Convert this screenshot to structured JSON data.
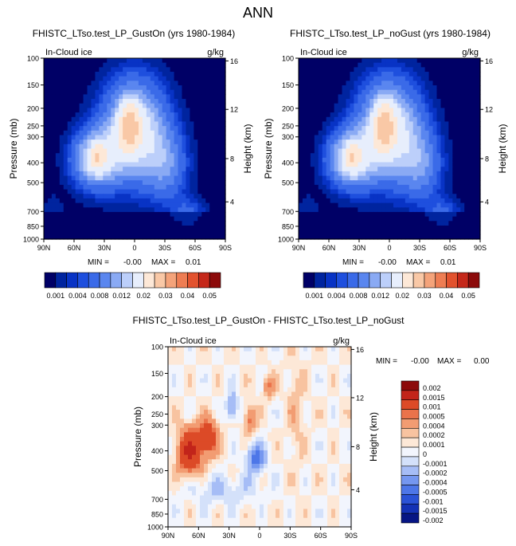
{
  "figure_title": "ANN",
  "colors": {
    "main_scale": [
      "#000066",
      "#00249f",
      "#0833c5",
      "#1e4fde",
      "#3a6ae8",
      "#5a86ef",
      "#8aaaf4",
      "#bccffa",
      "#e7eefc",
      "#fde8d7",
      "#f9c8a6",
      "#f4a37a",
      "#ee7d53",
      "#e2522e",
      "#c5281a",
      "#8c0a0a"
    ],
    "diff_scale": [
      "#061584",
      "#1331b5",
      "#2a52d6",
      "#4d76e8",
      "#7597f0",
      "#a6bdf6",
      "#d4e1fa",
      "#f2f5fd",
      "#fde8d7",
      "#f8c3a0",
      "#f29c72",
      "#ea734b",
      "#dc4a27",
      "#c2241a",
      "#8c0a0a"
    ]
  },
  "chart_data": [
    {
      "type": "contour",
      "title": "FHISTC_LTso.test_LP_GustOn (yrs 1980-1984)",
      "left_label": "In-Cloud ice",
      "units": "g/kg",
      "xlabel": "",
      "ylabel": "Pressure (mb)",
      "ylabel_right": "Height (km)",
      "x_ticks": [
        "90N",
        "60N",
        "30N",
        "0",
        "30S",
        "60S",
        "90S"
      ],
      "y_ticks": [
        "100",
        "150",
        "200",
        "250",
        "300",
        "400",
        "500",
        "700",
        "850",
        "1000"
      ],
      "y_right_ticks": [
        "16",
        "12",
        "8",
        "4"
      ],
      "stats": {
        "min": "-0.00",
        "max": "0.01"
      },
      "colorbar_labels": [
        "0.001",
        "0.004",
        "0.008",
        "0.012",
        "0.02",
        "0.03",
        "0.04",
        "0.05"
      ],
      "min_label": "MIN =",
      "max_label": "MAX ="
    },
    {
      "type": "contour",
      "title": "FHISTC_LTso.test_LP_noGust (yrs 1980-1984)",
      "left_label": "In-Cloud ice",
      "units": "g/kg",
      "xlabel": "",
      "ylabel": "Pressure (mb)",
      "ylabel_right": "Height (km)",
      "x_ticks": [
        "90N",
        "60N",
        "30N",
        "0",
        "30S",
        "60S",
        "90S"
      ],
      "y_ticks": [
        "100",
        "150",
        "200",
        "250",
        "300",
        "400",
        "500",
        "700",
        "850",
        "1000"
      ],
      "y_right_ticks": [
        "16",
        "12",
        "8",
        "4"
      ],
      "stats": {
        "min": "-0.00",
        "max": "0.01"
      },
      "colorbar_labels": [
        "0.001",
        "0.004",
        "0.008",
        "0.012",
        "0.02",
        "0.03",
        "0.04",
        "0.05"
      ],
      "min_label": "MIN =",
      "max_label": "MAX ="
    },
    {
      "type": "contour",
      "title": "FHISTC_LTso.test_LP_GustOn - FHISTC_LTso.test_LP_noGust",
      "left_label": "In-Cloud ice",
      "units": "g/kg",
      "xlabel": "",
      "ylabel": "Pressure (mb)",
      "ylabel_right": "Height (km)",
      "x_ticks": [
        "90N",
        "60N",
        "30N",
        "0",
        "30S",
        "60S",
        "90S"
      ],
      "y_ticks": [
        "100",
        "150",
        "200",
        "250",
        "300",
        "400",
        "500",
        "700",
        "850",
        "1000"
      ],
      "y_right_ticks": [
        "16",
        "12",
        "8",
        "4"
      ],
      "stats": {
        "min": "-0.00",
        "max": "0.00"
      },
      "colorbar_labels": [
        "0.002",
        "0.0015",
        "0.001",
        "0.0005",
        "0.0004",
        "0.0002",
        "0.0001",
        "0",
        "-0.0001",
        "-0.0002",
        "-0.0004",
        "-0.0005",
        "-0.001",
        "-0.0015",
        "-0.002"
      ],
      "min_label": "MIN =",
      "max_label": "MAX ="
    }
  ]
}
